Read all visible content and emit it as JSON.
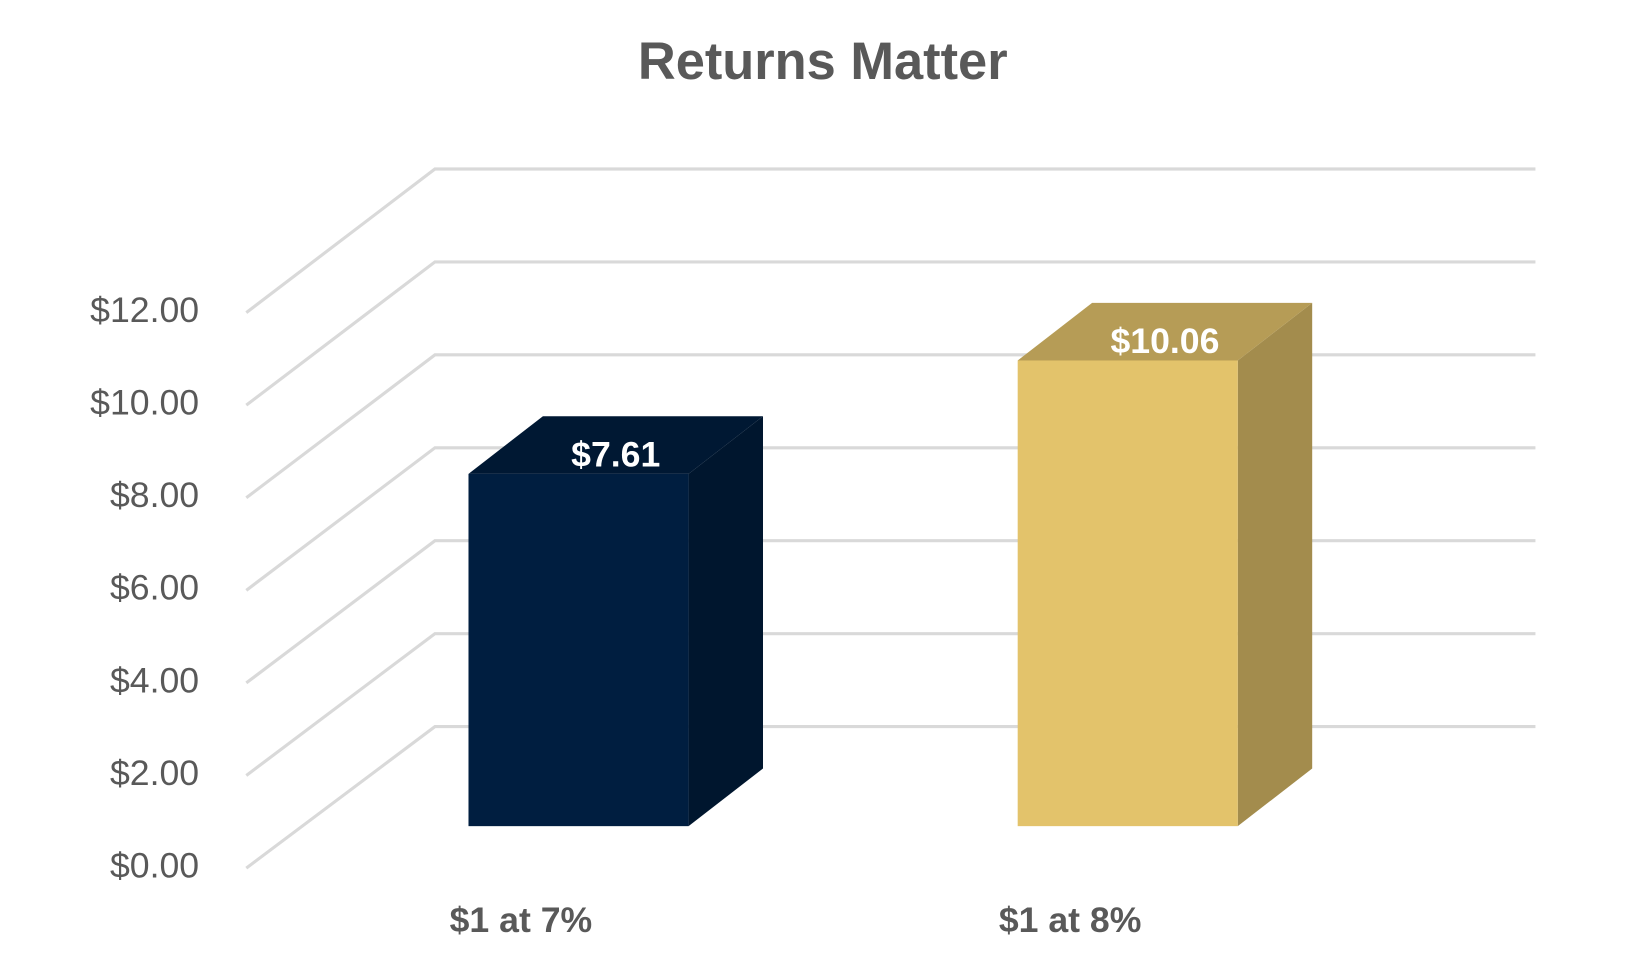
{
  "chart_data": {
    "type": "bar3d",
    "title": "Returns Matter",
    "categories": [
      "$1 at 7%",
      "$1 at 8%"
    ],
    "values": [
      7.61,
      10.06
    ],
    "value_labels": [
      "$7.61",
      "$10.06"
    ],
    "colors": [
      "#001e40",
      "#e3c36b"
    ],
    "ylim": [
      0,
      12
    ],
    "yticks": [
      {
        "value": 0,
        "label": "$0.00"
      },
      {
        "value": 2,
        "label": "$2.00"
      },
      {
        "value": 4,
        "label": "$4.00"
      },
      {
        "value": 6,
        "label": "$6.00"
      },
      {
        "value": 8,
        "label": "$8.00"
      },
      {
        "value": 10,
        "label": "$10.00"
      },
      {
        "value": 12,
        "label": "$12.00"
      }
    ],
    "grid": true
  }
}
